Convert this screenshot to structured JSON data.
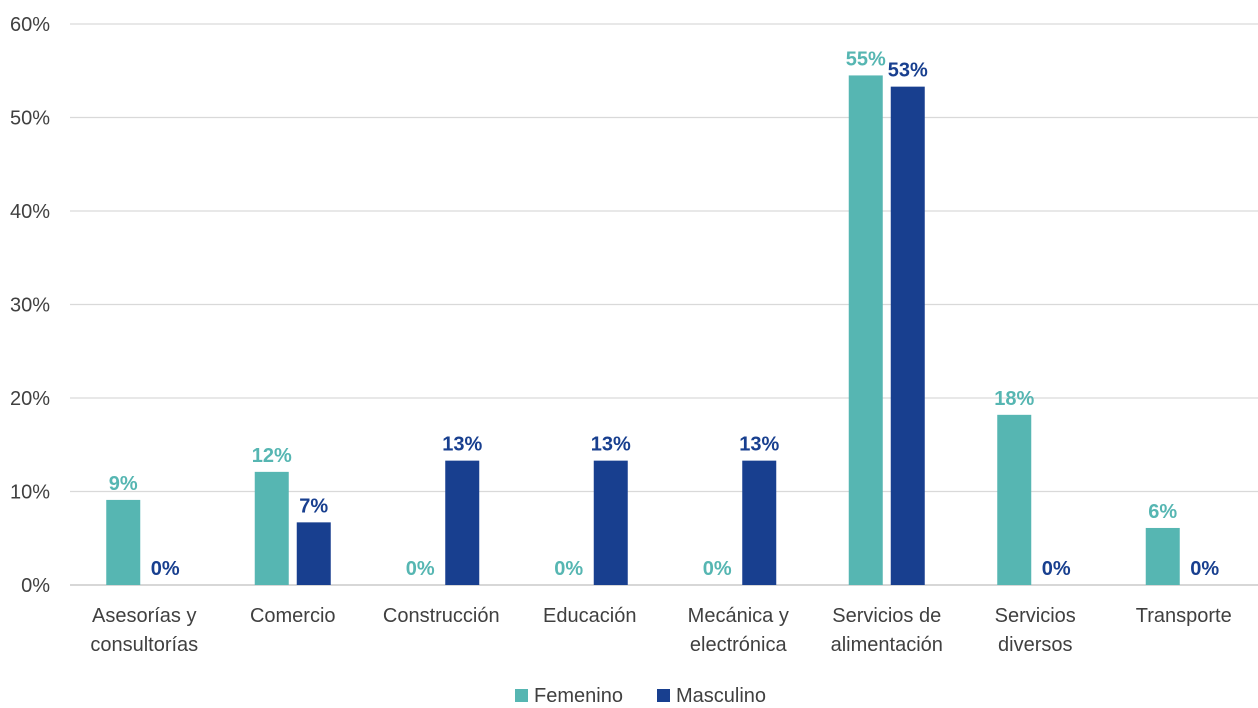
{
  "colors": {
    "femenino": "#56b6b2",
    "masculino": "#183f8f",
    "grid": "#d9d9d9",
    "axis": "#bfbfbf",
    "text": "#404040"
  },
  "chart_data": {
    "type": "bar",
    "categories": [
      [
        "Asesorías y",
        "consultorías"
      ],
      [
        "Comercio"
      ],
      [
        "Construcción"
      ],
      [
        "Educación"
      ],
      [
        "Mecánica y",
        "electrónica"
      ],
      [
        "Servicios de",
        "alimentación"
      ],
      [
        "Servicios",
        "diversos"
      ],
      [
        "Transporte"
      ]
    ],
    "series": [
      {
        "name": "Femenino",
        "values": [
          9.1,
          12.1,
          0,
          0,
          0,
          54.5,
          18.2,
          6.1
        ],
        "labels": [
          "9%",
          "12%",
          "0%",
          "0%",
          "0%",
          "55%",
          "18%",
          "6%"
        ]
      },
      {
        "name": "Masculino",
        "values": [
          0,
          6.7,
          13.3,
          13.3,
          13.3,
          53.3,
          0,
          0
        ],
        "labels": [
          "0%",
          "7%",
          "13%",
          "13%",
          "13%",
          "53%",
          "0%",
          "0%"
        ]
      }
    ],
    "ylim": [
      0,
      60
    ],
    "yticks": [
      "0%",
      "10%",
      "20%",
      "30%",
      "40%",
      "50%",
      "60%"
    ],
    "grid": true,
    "legend_position": "bottom"
  }
}
